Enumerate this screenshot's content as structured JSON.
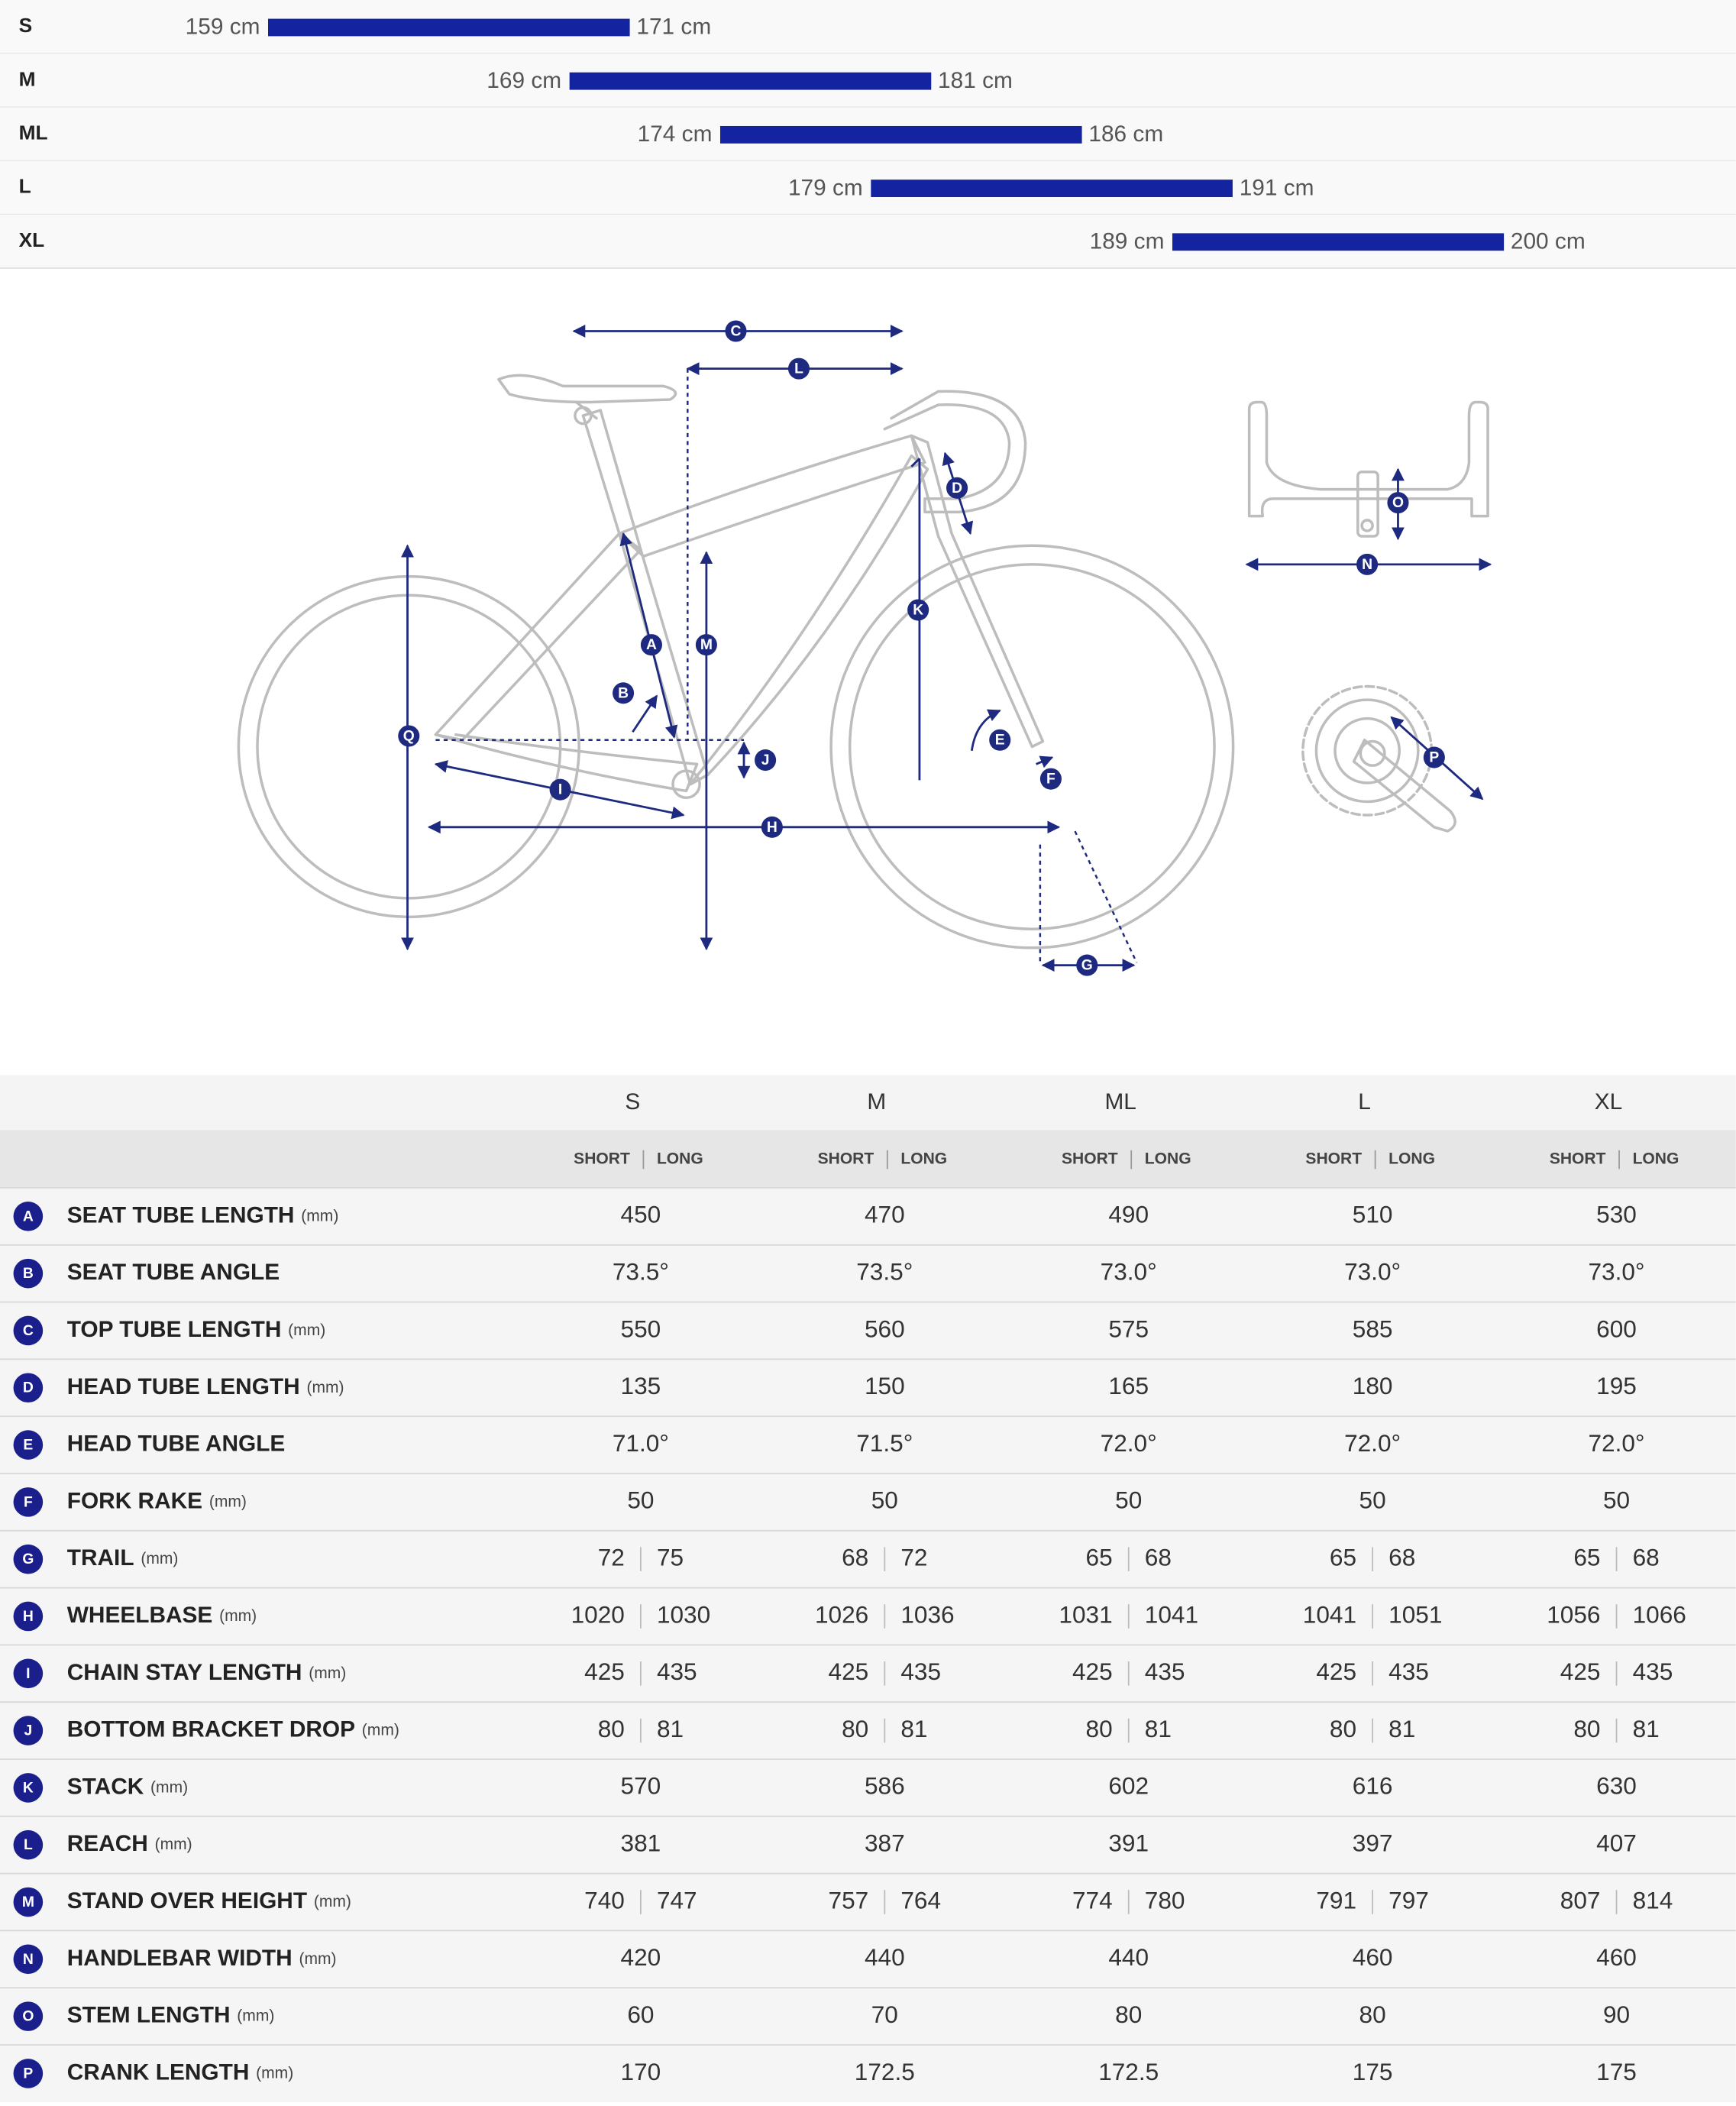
{
  "rider_heights": {
    "rows": [
      {
        "size": "S",
        "min": 159,
        "max": 171,
        "min_label": "159 cm",
        "max_label": "171 cm"
      },
      {
        "size": "M",
        "min": 169,
        "max": 181,
        "min_label": "169 cm",
        "max_label": "181 cm"
      },
      {
        "size": "ML",
        "min": 174,
        "max": 186,
        "min_label": "174 cm",
        "max_label": "186 cm"
      },
      {
        "size": "L",
        "min": 179,
        "max": 191,
        "min_label": "179 cm",
        "max_label": "191 cm"
      },
      {
        "size": "XL",
        "min": 189,
        "max": 200,
        "min_label": "189 cm",
        "max_label": "200 cm"
      }
    ]
  },
  "diagram": {
    "labels": [
      "C",
      "L",
      "D",
      "K",
      "M",
      "A",
      "B",
      "Q",
      "J",
      "E",
      "F",
      "I",
      "H",
      "G",
      "O",
      "N",
      "P"
    ]
  },
  "table": {
    "sizes": [
      "S",
      "M",
      "ML",
      "L",
      "XL"
    ],
    "short_label": "SHORT",
    "long_label": "LONG",
    "rows": [
      {
        "letter": "A",
        "name": "SEAT TUBE LENGTH",
        "unit": "(mm)",
        "values": [
          450,
          470,
          490,
          510,
          530
        ]
      },
      {
        "letter": "B",
        "name": "SEAT TUBE ANGLE",
        "values": [
          "73.5°",
          "73.5°",
          "73.0°",
          "73.0°",
          "73.0°"
        ]
      },
      {
        "letter": "C",
        "name": "TOP TUBE LENGTH",
        "unit": "(mm)",
        "values": [
          550,
          560,
          575,
          585,
          600
        ]
      },
      {
        "letter": "D",
        "name": "HEAD TUBE LENGTH",
        "unit": "(mm)",
        "values": [
          135,
          150,
          165,
          180,
          195
        ]
      },
      {
        "letter": "E",
        "name": "HEAD TUBE ANGLE",
        "values": [
          "71.0°",
          "71.5°",
          "72.0°",
          "72.0°",
          "72.0°"
        ]
      },
      {
        "letter": "F",
        "name": "FORK RAKE",
        "unit": "(mm)",
        "values": [
          50,
          50,
          50,
          50,
          50
        ]
      },
      {
        "letter": "G",
        "name": "TRAIL",
        "unit": "(mm)",
        "values": [
          [
            72,
            75
          ],
          [
            68,
            72
          ],
          [
            65,
            68
          ],
          [
            65,
            68
          ],
          [
            65,
            68
          ]
        ]
      },
      {
        "letter": "H",
        "name": "WHEELBASE",
        "unit": "(mm)",
        "values": [
          [
            1020,
            1030
          ],
          [
            1026,
            1036
          ],
          [
            1031,
            1041
          ],
          [
            1041,
            1051
          ],
          [
            1056,
            1066
          ]
        ]
      },
      {
        "letter": "I",
        "name": "CHAIN STAY LENGTH",
        "unit": "(mm)",
        "values": [
          [
            425,
            435
          ],
          [
            425,
            435
          ],
          [
            425,
            435
          ],
          [
            425,
            435
          ],
          [
            425,
            435
          ]
        ]
      },
      {
        "letter": "J",
        "name": "BOTTOM BRACKET DROP",
        "unit": "(mm)",
        "values": [
          [
            80,
            81
          ],
          [
            80,
            81
          ],
          [
            80,
            81
          ],
          [
            80,
            81
          ],
          [
            80,
            81
          ]
        ]
      },
      {
        "letter": "K",
        "name": "STACK",
        "unit": "(mm)",
        "values": [
          570,
          586,
          602,
          616,
          630
        ]
      },
      {
        "letter": "L",
        "name": "REACH",
        "unit": "(mm)",
        "values": [
          381,
          387,
          391,
          397,
          407
        ]
      },
      {
        "letter": "M",
        "name": "STAND OVER HEIGHT",
        "unit": "(mm)",
        "values": [
          [
            740,
            747
          ],
          [
            757,
            764
          ],
          [
            774,
            780
          ],
          [
            791,
            797
          ],
          [
            807,
            814
          ]
        ]
      },
      {
        "letter": "N",
        "name": "HANDLEBAR WIDTH",
        "unit": "(mm)",
        "values": [
          420,
          440,
          440,
          460,
          460
        ]
      },
      {
        "letter": "O",
        "name": "STEM LENGTH",
        "unit": "(mm)",
        "values": [
          60,
          70,
          80,
          80,
          90
        ]
      },
      {
        "letter": "P",
        "name": "CRANK LENGTH",
        "unit": "(mm)",
        "values": [
          170,
          172.5,
          172.5,
          175,
          175
        ]
      }
    ]
  }
}
